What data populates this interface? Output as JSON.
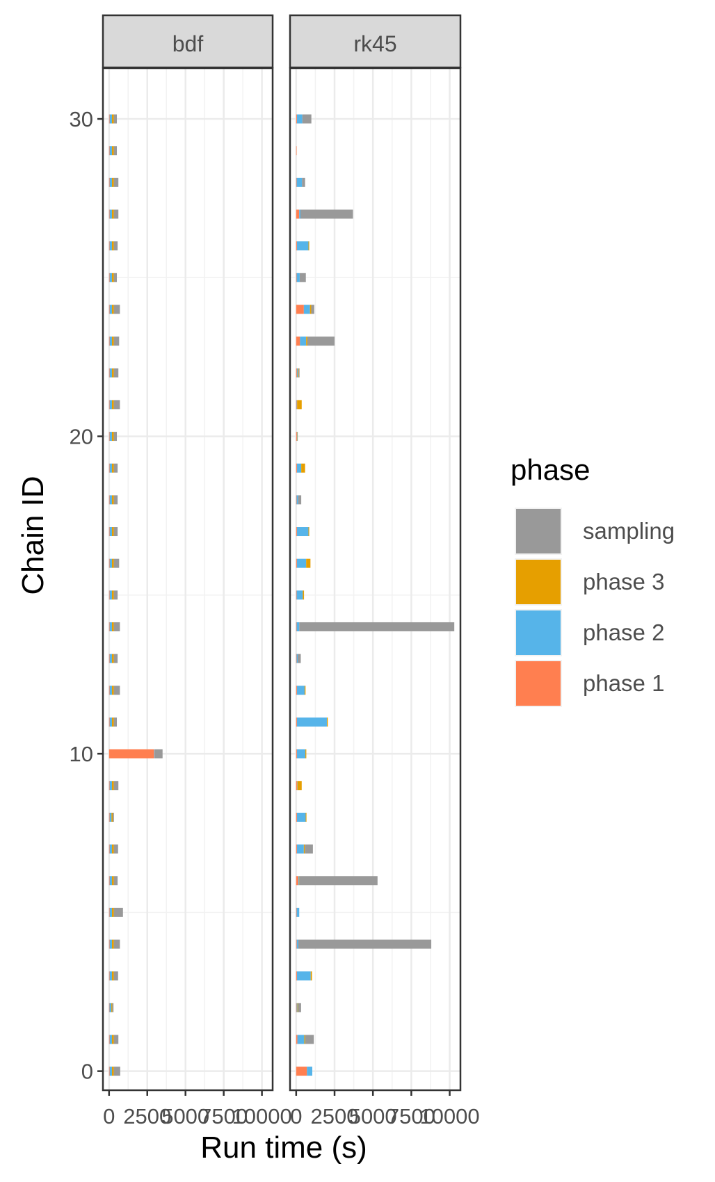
{
  "chart_data": {
    "type": "bar",
    "orientation": "horizontal",
    "stacked": true,
    "xlabel": "Run time (s)",
    "ylabel": "Chain ID",
    "x_ticks": [
      0,
      2500,
      5000,
      7500,
      10000
    ],
    "x_tick_labels": [
      "0",
      "2500",
      "5000",
      "7500",
      "10000"
    ],
    "xlim": [
      -400,
      10700
    ],
    "y_ticks": [
      0,
      10,
      20,
      30
    ],
    "y_tick_labels": [
      "0",
      "10",
      "20",
      "30"
    ],
    "ylim": [
      -0.6,
      31.6
    ],
    "grid": true,
    "legend": {
      "title": "phase",
      "position": "right",
      "entries": [
        {
          "key": "sampling",
          "label": "sampling",
          "color": "#999999"
        },
        {
          "key": "phase3",
          "label": "phase 3",
          "color": "#E69F00"
        },
        {
          "key": "phase2",
          "label": "phase 2",
          "color": "#56B4E9"
        },
        {
          "key": "phase1",
          "label": "phase 1",
          "color": "#FF7F50"
        }
      ]
    },
    "stack_order": [
      "phase1",
      "phase2",
      "phase3",
      "sampling"
    ],
    "colors": {
      "phase1": "#FF7F50",
      "phase2": "#56B4E9",
      "phase3": "#E69F00",
      "sampling": "#999999"
    },
    "panels": [
      {
        "title": "bdf",
        "chains": [
          {
            "id": 0,
            "phase1": 40,
            "phase2": 150,
            "phase3": 120,
            "sampling": 420
          },
          {
            "id": 1,
            "phase1": 40,
            "phase2": 150,
            "phase3": 120,
            "sampling": 300
          },
          {
            "id": 2,
            "phase1": 30,
            "phase2": 120,
            "phase3": 60,
            "sampling": 80
          },
          {
            "id": 3,
            "phase1": 40,
            "phase2": 150,
            "phase3": 120,
            "sampling": 280
          },
          {
            "id": 4,
            "phase1": 40,
            "phase2": 150,
            "phase3": 120,
            "sampling": 400
          },
          {
            "id": 5,
            "phase1": 40,
            "phase2": 150,
            "phase3": 120,
            "sampling": 600
          },
          {
            "id": 6,
            "phase1": 40,
            "phase2": 150,
            "phase3": 120,
            "sampling": 250
          },
          {
            "id": 7,
            "phase1": 40,
            "phase2": 150,
            "phase3": 120,
            "sampling": 280
          },
          {
            "id": 8,
            "phase1": 40,
            "phase2": 120,
            "phase3": 80,
            "sampling": 80
          },
          {
            "id": 9,
            "phase1": 40,
            "phase2": 150,
            "phase3": 120,
            "sampling": 300
          },
          {
            "id": 10,
            "phase1": 2950,
            "phase2": 30,
            "phase3": 0,
            "sampling": 520
          },
          {
            "id": 11,
            "phase1": 40,
            "phase2": 150,
            "phase3": 120,
            "sampling": 200
          },
          {
            "id": 12,
            "phase1": 40,
            "phase2": 150,
            "phase3": 120,
            "sampling": 400
          },
          {
            "id": 13,
            "phase1": 40,
            "phase2": 150,
            "phase3": 120,
            "sampling": 250
          },
          {
            "id": 14,
            "phase1": 40,
            "phase2": 150,
            "phase3": 120,
            "sampling": 400
          },
          {
            "id": 15,
            "phase1": 40,
            "phase2": 150,
            "phase3": 120,
            "sampling": 250
          },
          {
            "id": 16,
            "phase1": 40,
            "phase2": 150,
            "phase3": 120,
            "sampling": 350
          },
          {
            "id": 17,
            "phase1": 40,
            "phase2": 150,
            "phase3": 120,
            "sampling": 250
          },
          {
            "id": 18,
            "phase1": 40,
            "phase2": 150,
            "phase3": 120,
            "sampling": 250
          },
          {
            "id": 19,
            "phase1": 40,
            "phase2": 150,
            "phase3": 120,
            "sampling": 250
          },
          {
            "id": 20,
            "phase1": 40,
            "phase2": 150,
            "phase3": 120,
            "sampling": 200
          },
          {
            "id": 21,
            "phase1": 40,
            "phase2": 150,
            "phase3": 120,
            "sampling": 400
          },
          {
            "id": 22,
            "phase1": 40,
            "phase2": 150,
            "phase3": 120,
            "sampling": 300
          },
          {
            "id": 23,
            "phase1": 40,
            "phase2": 150,
            "phase3": 120,
            "sampling": 350
          },
          {
            "id": 24,
            "phase1": 40,
            "phase2": 150,
            "phase3": 120,
            "sampling": 400
          },
          {
            "id": 25,
            "phase1": 40,
            "phase2": 150,
            "phase3": 120,
            "sampling": 200
          },
          {
            "id": 26,
            "phase1": 40,
            "phase2": 150,
            "phase3": 120,
            "sampling": 250
          },
          {
            "id": 27,
            "phase1": 40,
            "phase2": 150,
            "phase3": 120,
            "sampling": 300
          },
          {
            "id": 28,
            "phase1": 40,
            "phase2": 150,
            "phase3": 120,
            "sampling": 300
          },
          {
            "id": 29,
            "phase1": 40,
            "phase2": 150,
            "phase3": 120,
            "sampling": 200
          },
          {
            "id": 30,
            "phase1": 40,
            "phase2": 150,
            "phase3": 120,
            "sampling": 200
          }
        ]
      },
      {
        "title": "rk45",
        "chains": [
          {
            "id": 0,
            "phase1": 700,
            "phase2": 350,
            "phase3": 0,
            "sampling": 0
          },
          {
            "id": 1,
            "phase1": 80,
            "phase2": 450,
            "phase3": 60,
            "sampling": 560
          },
          {
            "id": 2,
            "phase1": 30,
            "phase2": 50,
            "phase3": 40,
            "sampling": 200
          },
          {
            "id": 3,
            "phase1": 50,
            "phase2": 900,
            "phase3": 80,
            "sampling": 0
          },
          {
            "id": 4,
            "phase1": 40,
            "phase2": 100,
            "phase3": 0,
            "sampling": 8660
          },
          {
            "id": 5,
            "phase1": 30,
            "phase2": 170,
            "phase3": 0,
            "sampling": 0
          },
          {
            "id": 6,
            "phase1": 150,
            "phase2": 60,
            "phase3": 20,
            "sampling": 5070
          },
          {
            "id": 7,
            "phase1": 50,
            "phase2": 450,
            "phase3": 60,
            "sampling": 530
          },
          {
            "id": 8,
            "phase1": 50,
            "phase2": 570,
            "phase3": 50,
            "sampling": 0
          },
          {
            "id": 9,
            "phase1": 60,
            "phase2": 20,
            "phase3": 280,
            "sampling": 0
          },
          {
            "id": 10,
            "phase1": 50,
            "phase2": 550,
            "phase3": 60,
            "sampling": 0
          },
          {
            "id": 11,
            "phase1": 50,
            "phase2": 1950,
            "phase3": 60,
            "sampling": 0
          },
          {
            "id": 12,
            "phase1": 50,
            "phase2": 500,
            "phase3": 60,
            "sampling": 0
          },
          {
            "id": 13,
            "phase1": 30,
            "phase2": 70,
            "phase3": 0,
            "sampling": 200
          },
          {
            "id": 14,
            "phase1": 30,
            "phase2": 170,
            "phase3": 0,
            "sampling": 10100
          },
          {
            "id": 15,
            "phase1": 30,
            "phase2": 400,
            "phase3": 80,
            "sampling": 0
          },
          {
            "id": 16,
            "phase1": 50,
            "phase2": 600,
            "phase3": 280,
            "sampling": 0
          },
          {
            "id": 17,
            "phase1": 50,
            "phase2": 750,
            "phase3": 50,
            "sampling": 0
          },
          {
            "id": 18,
            "phase1": 30,
            "phase2": 100,
            "phase3": 0,
            "sampling": 200
          },
          {
            "id": 19,
            "phase1": 50,
            "phase2": 280,
            "phase3": 250,
            "sampling": 0
          },
          {
            "id": 20,
            "phase1": 50,
            "phase2": 30,
            "phase3": 20,
            "sampling": 0
          },
          {
            "id": 21,
            "phase1": 30,
            "phase2": 30,
            "phase3": 300,
            "sampling": 0
          },
          {
            "id": 22,
            "phase1": 50,
            "phase2": 60,
            "phase3": 50,
            "sampling": 60
          },
          {
            "id": 23,
            "phase1": 250,
            "phase2": 400,
            "phase3": 80,
            "sampling": 1770
          },
          {
            "id": 24,
            "phase1": 500,
            "phase2": 400,
            "phase3": 80,
            "sampling": 200
          },
          {
            "id": 25,
            "phase1": 30,
            "phase2": 200,
            "phase3": 0,
            "sampling": 400
          },
          {
            "id": 26,
            "phase1": 50,
            "phase2": 750,
            "phase3": 50,
            "sampling": 0
          },
          {
            "id": 27,
            "phase1": 200,
            "phase2": 80,
            "phase3": 0,
            "sampling": 3420
          },
          {
            "id": 28,
            "phase1": 30,
            "phase2": 350,
            "phase3": 0,
            "sampling": 200
          },
          {
            "id": 29,
            "phase1": 30,
            "phase2": 0,
            "phase3": 0,
            "sampling": 0
          },
          {
            "id": 30,
            "phase1": 50,
            "phase2": 350,
            "phase3": 0,
            "sampling": 590
          }
        ]
      }
    ]
  }
}
